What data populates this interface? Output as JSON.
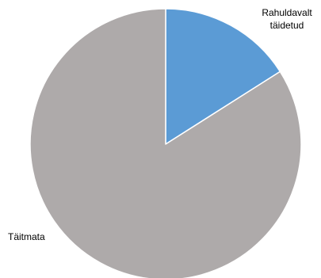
{
  "chart_data": {
    "type": "pie",
    "title": "",
    "start_angle_deg": 0,
    "direction": "clockwise",
    "slices": [
      {
        "label": "Rahuldavalt täidetud",
        "label_lines": [
          "Rahuldavalt",
          "täidetud"
        ],
        "value": 16,
        "color": "#5b9bd5"
      },
      {
        "label": "Täitmata",
        "label_lines": [
          "Täitmata"
        ],
        "value": 84,
        "color": "#aeaaaa"
      }
    ],
    "legend": "none",
    "border_color": "#ffffff"
  }
}
